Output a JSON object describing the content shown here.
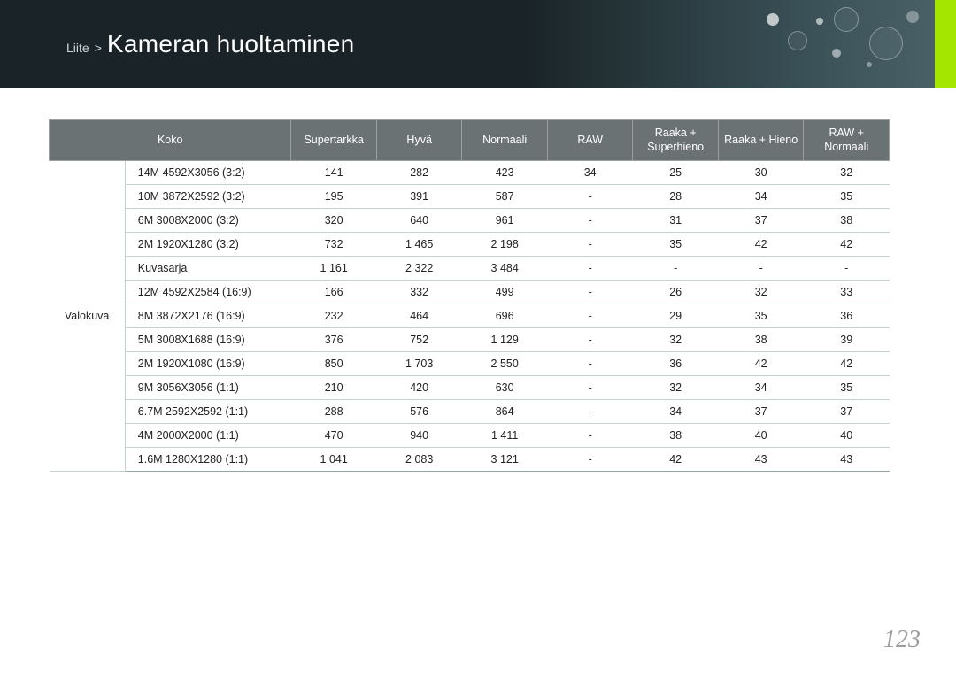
{
  "banner": {
    "breadcrumb_prefix": "Liite",
    "breadcrumb_sep": ">",
    "title": "Kameran huoltaminen",
    "bg_gradient_start": "#1a2428",
    "bg_gradient_end": "#4a6268",
    "accent_color": "#a4e600"
  },
  "table": {
    "row_header": "Valokuva",
    "columns": [
      "Koko",
      "Supertarkka",
      "Hyvä",
      "Normaali",
      "RAW",
      "Raaka + Superhieno",
      "Raaka + Hieno",
      "RAW + Normaali"
    ],
    "header_bg": "#6b7274",
    "header_fg": "#ffffff",
    "row_border": "#c5d2d2",
    "font_size": 12.5,
    "rows": [
      {
        "size": "14M 4592X3056 (3:2)",
        "v": [
          "141",
          "282",
          "423",
          "34",
          "25",
          "30",
          "32"
        ]
      },
      {
        "size": "10M 3872X2592 (3:2)",
        "v": [
          "195",
          "391",
          "587",
          "-",
          "28",
          "34",
          "35"
        ]
      },
      {
        "size": "6M 3008X2000 (3:2)",
        "v": [
          "320",
          "640",
          "961",
          "-",
          "31",
          "37",
          "38"
        ]
      },
      {
        "size": "2M 1920X1280 (3:2)",
        "v": [
          "732",
          "1 465",
          "2 198",
          "-",
          "35",
          "42",
          "42"
        ]
      },
      {
        "size": "Kuvasarja",
        "v": [
          "1 161",
          "2 322",
          "3 484",
          "-",
          "-",
          "-",
          "-"
        ]
      },
      {
        "size": "12M 4592X2584 (16:9)",
        "v": [
          "166",
          "332",
          "499",
          "-",
          "26",
          "32",
          "33"
        ]
      },
      {
        "size": "8M 3872X2176 (16:9)",
        "v": [
          "232",
          "464",
          "696",
          "-",
          "29",
          "35",
          "36"
        ]
      },
      {
        "size": "5M 3008X1688 (16:9)",
        "v": [
          "376",
          "752",
          "1 129",
          "-",
          "32",
          "38",
          "39"
        ]
      },
      {
        "size": "2M 1920X1080 (16:9)",
        "v": [
          "850",
          "1 703",
          "2 550",
          "-",
          "36",
          "42",
          "42"
        ]
      },
      {
        "size": "9M 3056X3056 (1:1)",
        "v": [
          "210",
          "420",
          "630",
          "-",
          "32",
          "34",
          "35"
        ]
      },
      {
        "size": "6.7M 2592X2592 (1:1)",
        "v": [
          "288",
          "576",
          "864",
          "-",
          "34",
          "37",
          "37"
        ]
      },
      {
        "size": "4M 2000X2000 (1:1)",
        "v": [
          "470",
          "940",
          "1 411",
          "-",
          "38",
          "40",
          "40"
        ]
      },
      {
        "size": "1.6M 1280X1280 (1:1)",
        "v": [
          "1 041",
          "2 083",
          "3 121",
          "-",
          "42",
          "43",
          "43"
        ]
      }
    ]
  },
  "page_number": "123"
}
